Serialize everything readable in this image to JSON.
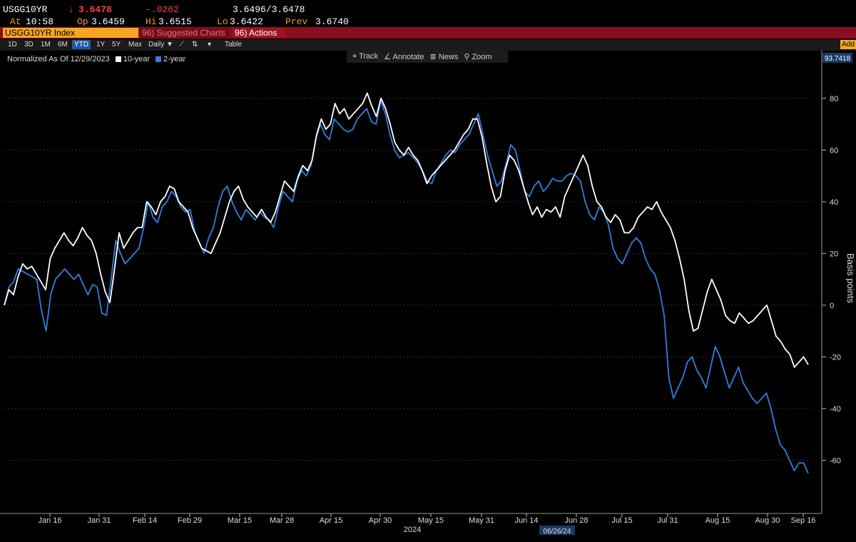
{
  "quote": {
    "ticker": "USGG10YR",
    "arrow": "↓",
    "last": "3.6478",
    "change": "-.0262",
    "bid_ask": "3.6496/3.6478",
    "time_label": "At",
    "time": "10:58",
    "open_label": "Op",
    "open": "3.6459",
    "high_label": "Hi",
    "high": "3.6515",
    "low_label": "Lo",
    "low": "3.6422",
    "prev_label": "Prev",
    "prev": "3.6740"
  },
  "command_bar": {
    "security": "USGG10YR Index",
    "suggested": "96) Suggested Charts",
    "actions": "96) Actions"
  },
  "toolbar": {
    "ranges": [
      "1D",
      "3D",
      "1M",
      "6M",
      "YTD",
      "1Y",
      "5Y",
      "Max"
    ],
    "active_range": "YTD",
    "frequency": "Daily ▼",
    "table": "Table",
    "add": "Add"
  },
  "tools": [
    "Track",
    "Annotate",
    "News",
    "Zoom"
  ],
  "colors": {
    "ten_year": "#ffffff",
    "two_year": "#2f7fe0",
    "bg": "#000000",
    "accent": "#f5a623",
    "bar": "#8b0e1e"
  },
  "chart_data": {
    "type": "line",
    "legend_note": "Normalized As Of 12/29/2023",
    "ylabel": "Basis points",
    "ylim": [
      -80,
      93.7418
    ],
    "yticks": [
      80,
      60,
      40,
      20,
      0,
      -20,
      -40,
      -60
    ],
    "last_value_label": "93.7418",
    "x_tick_labels": [
      "Jan 16",
      "Jan 31",
      "Feb 14",
      "Feb 29",
      "Mar 15",
      "Mar 28",
      "Apr 15",
      "Apr 30",
      "May 15",
      "May 31",
      "Jun 14",
      "Jun 28",
      "Jul 15",
      "Jul 31",
      "Aug 15",
      "Aug 30",
      "Sep 16"
    ],
    "x_year_label": "2024",
    "crosshair_date": "06/26/24",
    "series": [
      {
        "name": "10-year",
        "values": [
          0,
          6,
          4,
          11,
          16,
          14,
          15,
          12,
          9,
          6,
          18,
          22,
          25,
          28,
          25,
          23,
          26,
          30,
          27,
          25,
          20,
          12,
          5,
          1,
          14,
          28,
          22,
          25,
          28,
          30,
          30,
          40,
          38,
          35,
          40,
          42,
          46,
          45,
          40,
          38,
          36,
          30,
          26,
          22,
          21,
          20,
          24,
          28,
          34,
          40,
          44,
          46,
          41,
          38,
          36,
          34,
          37,
          34,
          32,
          36,
          42,
          48,
          46,
          44,
          50,
          54,
          52,
          56,
          66,
          72,
          68,
          70,
          78,
          74,
          76,
          72,
          74,
          76,
          78,
          82,
          77,
          73,
          80,
          76,
          70,
          63,
          60,
          58,
          61,
          58,
          56,
          52,
          47,
          50,
          52,
          54,
          56,
          58,
          60,
          63,
          66,
          68,
          72,
          72,
          65,
          55,
          46,
          40,
          42,
          52,
          58,
          56,
          52,
          46,
          40,
          35,
          38,
          34,
          37,
          36,
          38,
          34,
          42,
          46,
          50,
          54,
          58,
          54,
          46,
          40,
          38,
          34,
          32,
          35,
          33,
          28,
          28,
          30,
          34,
          36,
          38,
          37,
          40,
          36,
          33,
          30,
          25,
          18,
          10,
          -2,
          -10,
          -9,
          -2,
          5,
          10,
          6,
          2,
          -4,
          -6,
          -7,
          -3,
          -5,
          -7,
          -6,
          -4,
          -2,
          0,
          -6,
          -12,
          -14,
          -17,
          -19,
          -24,
          -22,
          -20,
          -23
        ]
      },
      {
        "name": "2-year",
        "values": [
          0,
          7,
          9,
          14,
          13,
          12,
          11,
          10,
          -2,
          -10,
          4,
          10,
          12,
          14,
          12,
          10,
          12,
          8,
          4,
          8,
          7,
          -3,
          -4,
          10,
          25,
          20,
          16,
          18,
          20,
          22,
          30,
          40,
          34,
          32,
          38,
          40,
          44,
          42,
          38,
          36,
          37,
          28,
          24,
          20,
          26,
          30,
          38,
          44,
          46,
          40,
          36,
          33,
          37,
          35,
          33,
          36,
          34,
          33,
          30,
          38,
          44,
          42,
          40,
          48,
          52,
          50,
          54,
          64,
          70,
          66,
          64,
          72,
          70,
          68,
          67,
          68,
          72,
          74,
          76,
          71,
          70,
          79,
          74,
          66,
          60,
          57,
          58,
          59,
          57,
          55,
          52,
          48,
          47,
          52,
          55,
          58,
          60,
          59,
          62,
          64,
          66,
          70,
          74,
          66,
          58,
          52,
          46,
          48,
          55,
          62,
          60,
          52,
          44,
          42,
          46,
          48,
          44,
          46,
          49,
          48,
          48,
          50,
          51,
          50,
          48,
          40,
          35,
          33,
          38,
          36,
          31,
          22,
          18,
          16,
          20,
          24,
          26,
          24,
          18,
          14,
          12,
          6,
          -4,
          -28,
          -36,
          -32,
          -28,
          -22,
          -20,
          -25,
          -28,
          -32,
          -24,
          -16,
          -20,
          -26,
          -32,
          -28,
          -24,
          -30,
          -33,
          -36,
          -38,
          -36,
          -34,
          -40,
          -48,
          -54,
          -56,
          -60,
          -64,
          -61,
          -61,
          -65
        ]
      }
    ]
  }
}
